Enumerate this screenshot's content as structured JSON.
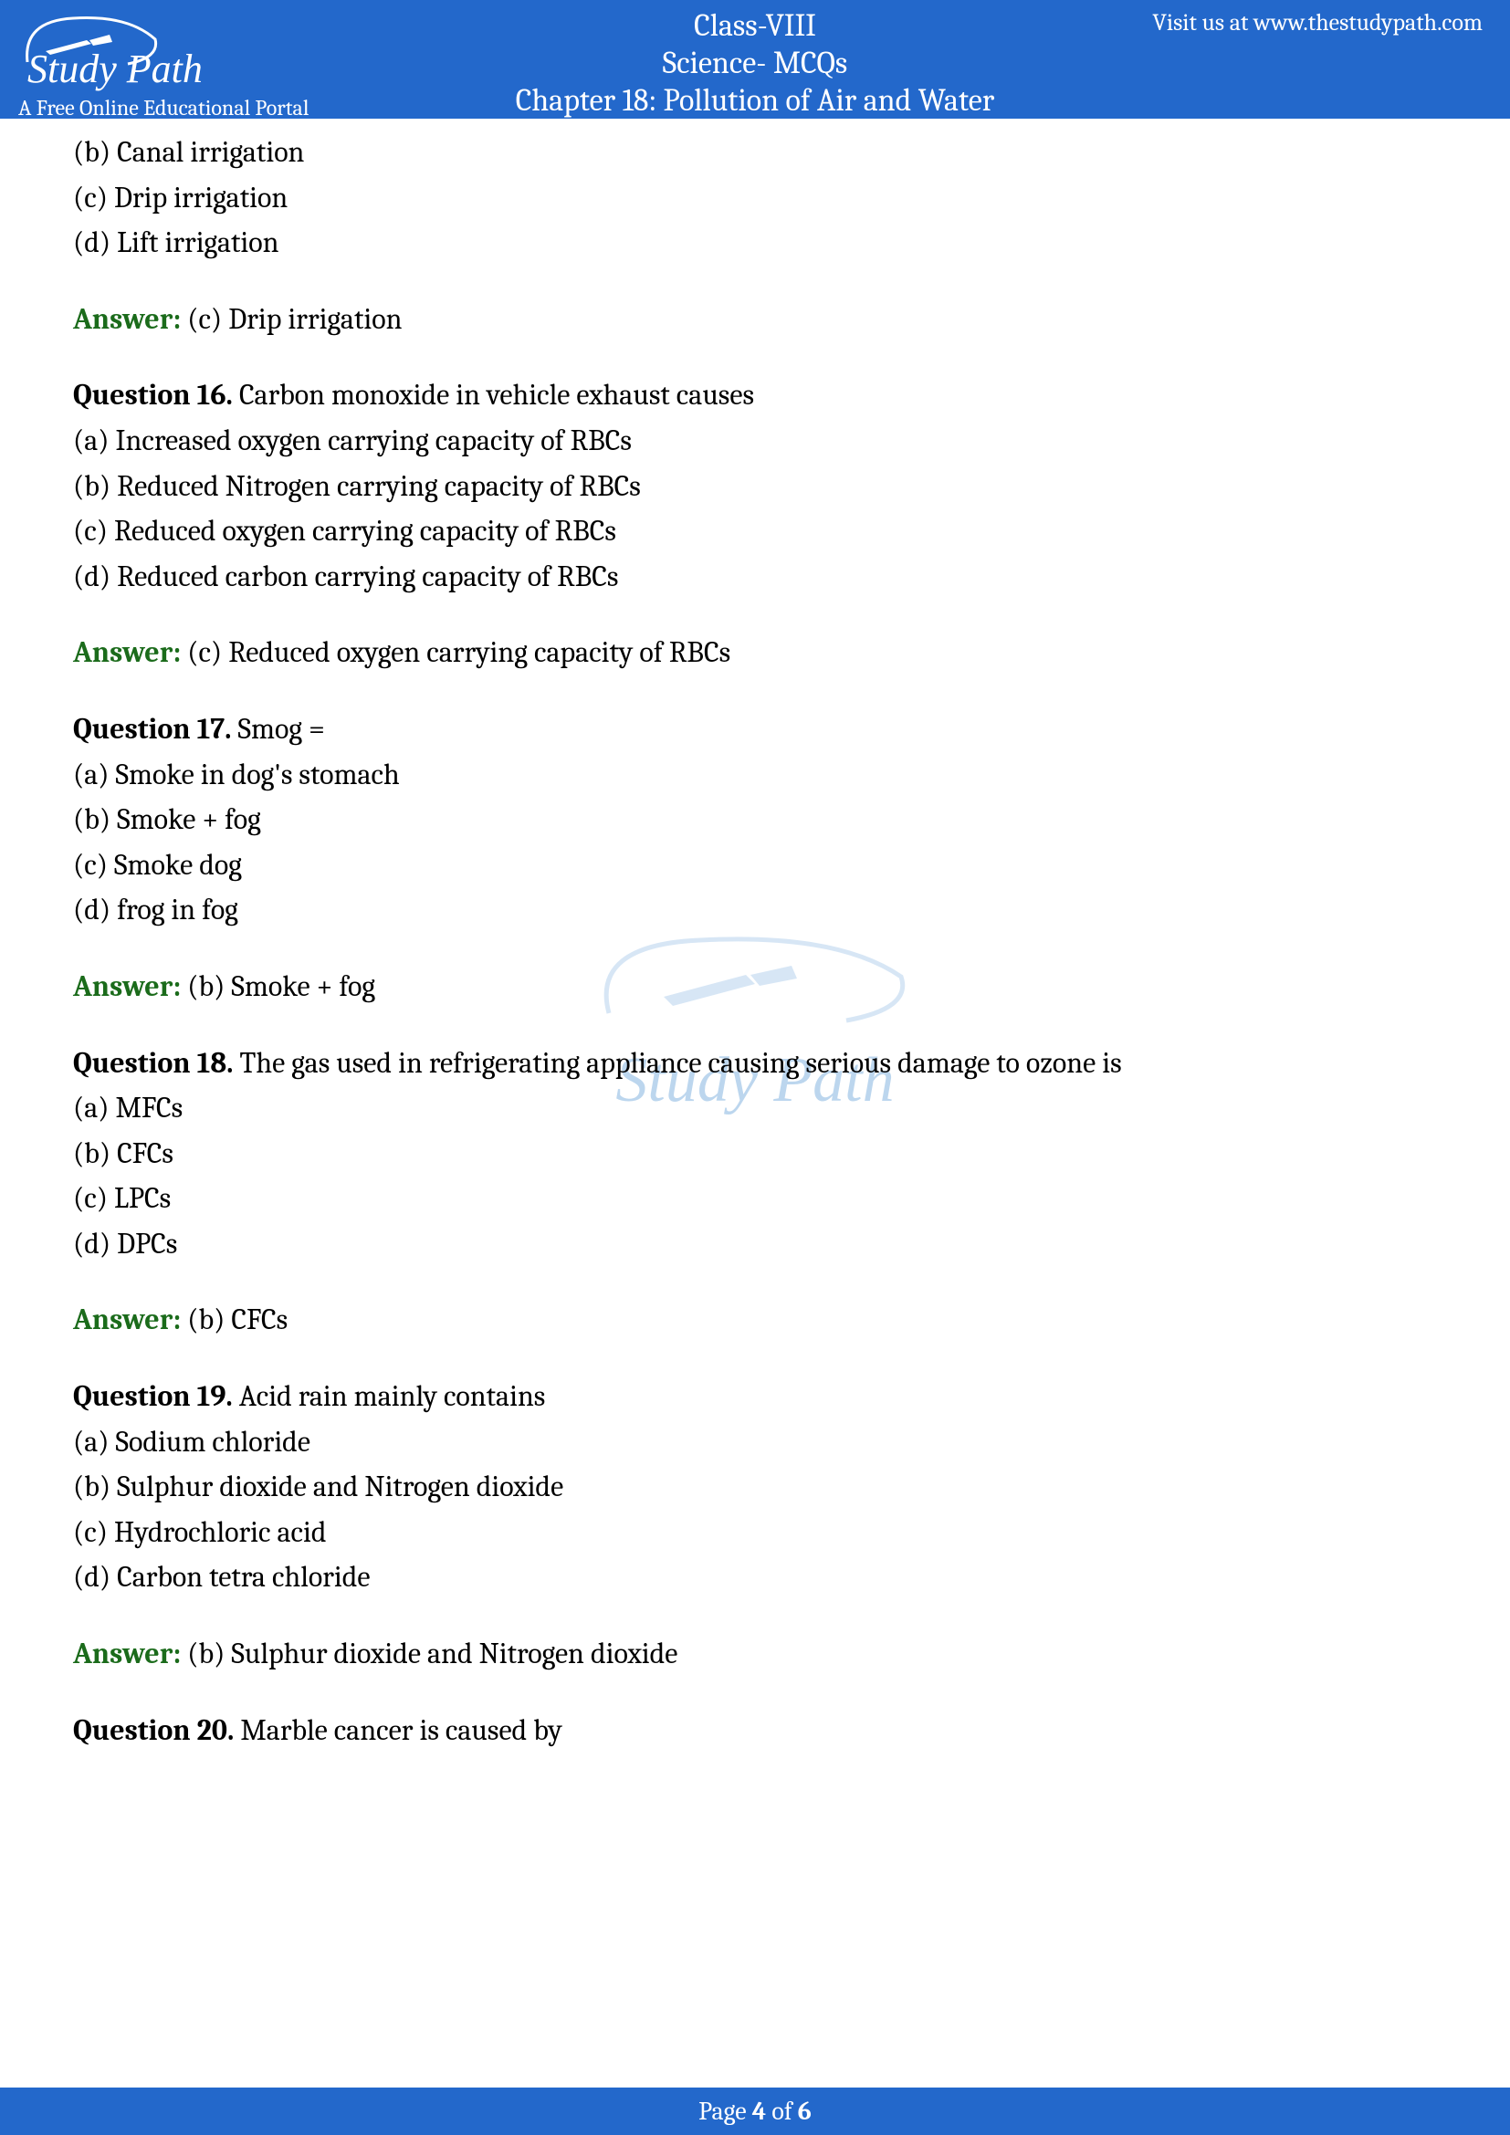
{
  "header": {
    "class_line": "Class-VIII",
    "subject_line": "Science- MCQs",
    "chapter_line": "Chapter 18: Pollution of Air and Water",
    "visit_text": "Visit us at www.thestudypath.com",
    "logo_name": "Study Path",
    "logo_subtitle": "A Free Online Educational Portal"
  },
  "q15_continued": {
    "options": [
      "(b) Canal irrigation",
      "(c) Drip irrigation",
      "(d) Lift irrigation"
    ],
    "answer_label": "Answer:",
    "answer_text": " (c) Drip irrigation"
  },
  "questions": [
    {
      "label": "Question 16. ",
      "text": "Carbon monoxide in vehicle exhaust causes",
      "options": [
        "(a) Increased oxygen carrying capacity of RBCs",
        "(b) Reduced Nitrogen carrying capacity of RBCs",
        "(c) Reduced oxygen carrying capacity of RBCs",
        "(d) Reduced carbon carrying capacity of RBCs"
      ],
      "answer_label": "Answer:",
      "answer_text": " (c) Reduced oxygen carrying capacity of RBCs"
    },
    {
      "label": "Question 17. ",
      "text": "Smog =",
      "options": [
        "(a) Smoke in dog's stomach",
        "(b) Smoke + fog",
        "(c) Smoke dog",
        "(d) frog in fog"
      ],
      "answer_label": "Answer:",
      "answer_text": " (b) Smoke + fog"
    },
    {
      "label": "Question 18. ",
      "text": "The gas used in refrigerating appliance causing serious damage to ozone is",
      "options": [
        "(a) MFCs",
        "(b) CFCs",
        "(c) LPCs",
        "(d) DPCs"
      ],
      "answer_label": "Answer:",
      "answer_text": " (b) CFCs"
    },
    {
      "label": "Question 19. ",
      "text": "Acid rain mainly contains",
      "options": [
        "(a) Sodium chloride",
        "(b) Sulphur dioxide and Nitrogen dioxide",
        "(c) Hydrochloric acid",
        "(d) Carbon tetra chloride"
      ],
      "answer_label": "Answer:",
      "answer_text": " (b) Sulphur dioxide and Nitrogen dioxide"
    },
    {
      "label": "Question 20. ",
      "text": "Marble cancer is caused by",
      "options": [],
      "answer_label": "",
      "answer_text": ""
    }
  ],
  "footer": {
    "page_word": "Page ",
    "current": "4",
    "of_word": " of ",
    "total": "6"
  },
  "watermark": "Study Path"
}
